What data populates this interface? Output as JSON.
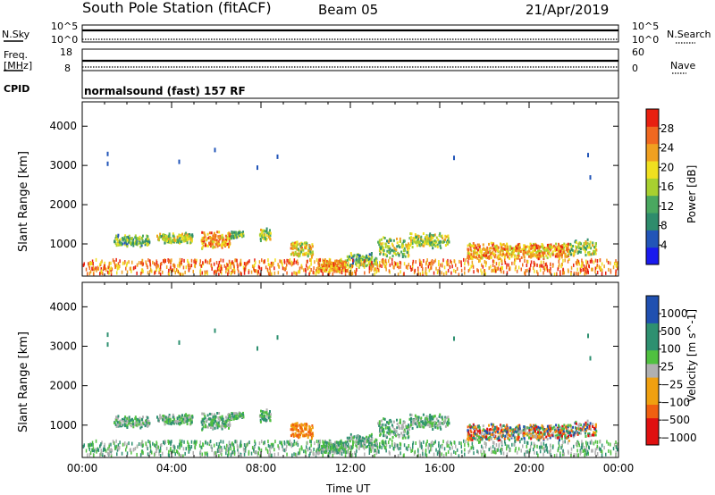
{
  "header": {
    "station": "South Pole Station (fitACF)",
    "beam": "Beam 05",
    "date": "21/Apr/2019"
  },
  "side_labels": {
    "nsky": "N.Sky",
    "freq": "Freq.",
    "mhz": "[MHz]",
    "cpid": "CPID",
    "nsearch": "N.Search",
    "nave": "Nave"
  },
  "top_ticks": {
    "nsky_left": [
      "10^5",
      "10^0"
    ],
    "nsky_right": [
      "10^5",
      "10^0"
    ],
    "freq_left": [
      "18",
      "8"
    ],
    "nave_right": [
      "60",
      "0"
    ]
  },
  "cpid_text": "normalsound (fast) 157 RF",
  "colors": {
    "power": [
      "#1a1aee",
      "#2255b8",
      "#2e8c6c",
      "#4aa860",
      "#a8d030",
      "#f0e020",
      "#f0a020",
      "#f06820",
      "#e82010"
    ],
    "velocity": [
      "#e01010",
      "#f06010",
      "#f0a010",
      "#b0b0b0",
      "#50c040",
      "#2e9070",
      "#2050b0"
    ]
  },
  "chart_data": [
    {
      "type": "heatmap",
      "name": "power",
      "ylabel": "Slant Range [km]",
      "xlabel": "",
      "ylim": [
        180,
        4620
      ],
      "xlim": [
        0,
        24
      ],
      "yticks": [
        1000,
        2000,
        3000,
        4000
      ],
      "colorbar": {
        "label": "Power [dB]",
        "ticks": [
          "28",
          "24",
          "20",
          "16",
          "12",
          "8",
          "4"
        ],
        "range": [
          0,
          32
        ]
      }
    },
    {
      "type": "heatmap",
      "name": "velocity",
      "ylabel": "Slant Range [km]",
      "xlabel": "Time UT",
      "ylim": [
        180,
        4620
      ],
      "xlim": [
        0,
        24
      ],
      "yticks": [
        1000,
        2000,
        3000,
        4000
      ],
      "xticks": [
        "00:00",
        "04:00",
        "08:00",
        "12:00",
        "16:00",
        "20:00",
        "00:00"
      ],
      "colorbar": {
        "label": "Velocity [m s^-1]",
        "ticks": [
          "1000",
          "500",
          "100",
          "25",
          "−25",
          "−100",
          "−500",
          "−1000"
        ]
      }
    }
  ]
}
